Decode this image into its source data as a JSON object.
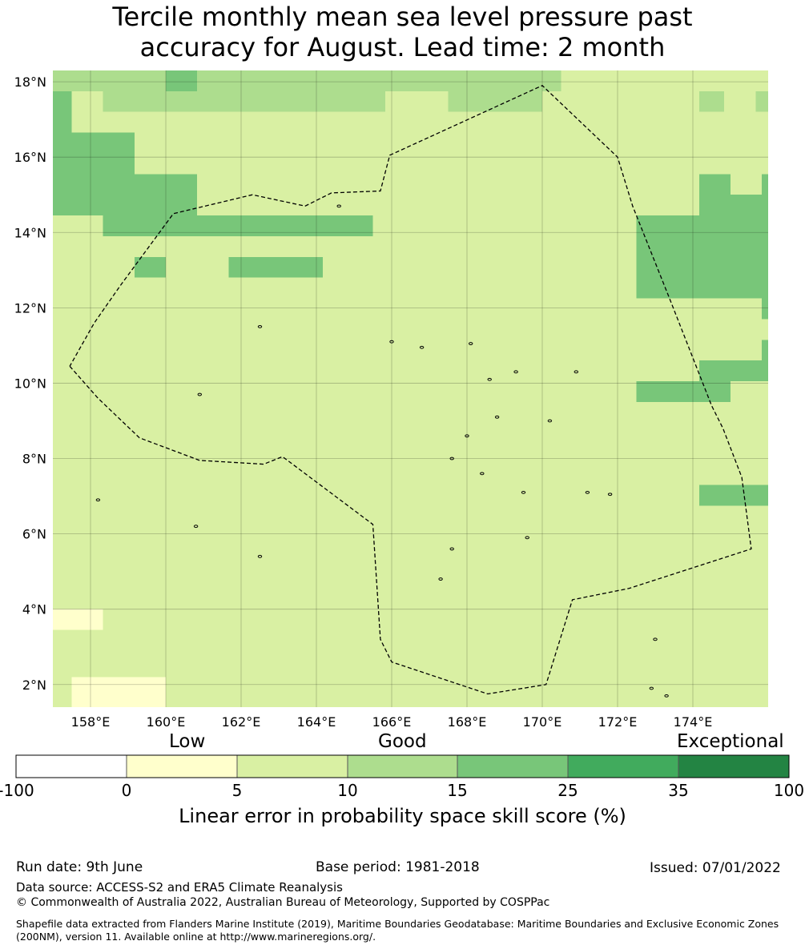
{
  "title_line1": "Tercile monthly mean sea level pressure past",
  "title_line2": "accuracy for August. Lead time: 2 month",
  "map": {
    "lon_range": [
      157,
      176
    ],
    "lat_range": [
      1.4,
      18.3
    ],
    "lon_ticks": [
      "158°E",
      "160°E",
      "162°E",
      "164°E",
      "166°E",
      "168°E",
      "170°E",
      "172°E",
      "174°E"
    ],
    "lat_ticks": [
      "18°N",
      "16°N",
      "14°N",
      "12°N",
      "10°N",
      "8°N",
      "6°N",
      "4°N",
      "2°N"
    ],
    "base_category": 2,
    "categories": [
      {
        "color": "#ffffff",
        "range": "-100 to 0"
      },
      {
        "color": "#ffffcc",
        "range": "0 to 5"
      },
      {
        "color": "#d9f0a3",
        "range": "5 to 10"
      },
      {
        "color": "#addd8e",
        "range": "10 to 15"
      },
      {
        "color": "#78c679",
        "range": "15 to 25"
      },
      {
        "color": "#41ab5d",
        "range": "25 to 35"
      },
      {
        "color": "#238443",
        "range": "35 to 100"
      }
    ],
    "category_cells": [
      {
        "category": 3,
        "lon": [
          157,
          170.5
        ],
        "lat": [
          17.75,
          18.3
        ]
      },
      {
        "category": 4,
        "lon": [
          160,
          160.83
        ],
        "lat": [
          17.75,
          18.3
        ]
      },
      {
        "category": 2,
        "lon": [
          170.5,
          176
        ],
        "lat": [
          17.75,
          18.3
        ]
      },
      {
        "category": 3,
        "lon": [
          157,
          176
        ],
        "lat": [
          17.2,
          17.75
        ]
      },
      {
        "category": 4,
        "lon": [
          157,
          157.5
        ],
        "lat": [
          17.2,
          17.75
        ]
      },
      {
        "category": 2,
        "lon": [
          157.5,
          158.33
        ],
        "lat": [
          17.2,
          17.75
        ]
      },
      {
        "category": 2,
        "lon": [
          165.83,
          167.5
        ],
        "lat": [
          17.2,
          17.75
        ]
      },
      {
        "category": 2,
        "lon": [
          170,
          174.17
        ],
        "lat": [
          17.2,
          17.75
        ]
      },
      {
        "category": 2,
        "lon": [
          174.83,
          175.67
        ],
        "lat": [
          17.2,
          17.75
        ]
      },
      {
        "category": 4,
        "lon": [
          157,
          157.5
        ],
        "lat": [
          16.65,
          17.2
        ]
      },
      {
        "category": 4,
        "lon": [
          157,
          159.17
        ],
        "lat": [
          16.1,
          16.65
        ]
      },
      {
        "category": 4,
        "lon": [
          157,
          159.17
        ],
        "lat": [
          15.55,
          16.1
        ]
      },
      {
        "category": 4,
        "lon": [
          157,
          160.83
        ],
        "lat": [
          15.0,
          15.55
        ]
      },
      {
        "category": 4,
        "lon": [
          174.17,
          175
        ],
        "lat": [
          15.0,
          15.55
        ]
      },
      {
        "category": 4,
        "lon": [
          175.83,
          176
        ],
        "lat": [
          15.0,
          15.55
        ]
      },
      {
        "category": 4,
        "lon": [
          157,
          160.83
        ],
        "lat": [
          14.45,
          15.0
        ]
      },
      {
        "category": 4,
        "lon": [
          174.17,
          176
        ],
        "lat": [
          14.45,
          15.0
        ]
      },
      {
        "category": 4,
        "lon": [
          158.33,
          165.5
        ],
        "lat": [
          13.9,
          14.45
        ]
      },
      {
        "category": 4,
        "lon": [
          172.5,
          176
        ],
        "lat": [
          13.9,
          14.45
        ]
      },
      {
        "category": 4,
        "lon": [
          172.5,
          176
        ],
        "lat": [
          13.35,
          13.9
        ]
      },
      {
        "category": 4,
        "lon": [
          159.17,
          160
        ],
        "lat": [
          12.8,
          13.35
        ]
      },
      {
        "category": 4,
        "lon": [
          161.67,
          164.17
        ],
        "lat": [
          12.8,
          13.35
        ]
      },
      {
        "category": 4,
        "lon": [
          172.5,
          176
        ],
        "lat": [
          12.8,
          13.35
        ]
      },
      {
        "category": 2,
        "lon": [
          159.17,
          160
        ],
        "lat": [
          12.25,
          12.8
        ]
      },
      {
        "category": 2,
        "lon": [
          164.17,
          165.83
        ],
        "lat": [
          12.25,
          12.8
        ]
      },
      {
        "category": 2,
        "lon": [
          170.83,
          172.5
        ],
        "lat": [
          12.25,
          12.8
        ]
      },
      {
        "category": 4,
        "lon": [
          172.5,
          176
        ],
        "lat": [
          12.25,
          12.8
        ]
      },
      {
        "category": 2,
        "lon": [
          162.5,
          164.17
        ],
        "lat": [
          11.7,
          12.25
        ]
      },
      {
        "category": 2,
        "lon": [
          165.83,
          169.17
        ],
        "lat": [
          11.7,
          12.25
        ]
      },
      {
        "category": 4,
        "lon": [
          175.83,
          176
        ],
        "lat": [
          11.7,
          12.25
        ]
      },
      {
        "category": 2,
        "lon": [
          160,
          164.17
        ],
        "lat": [
          11.15,
          11.7
        ]
      },
      {
        "category": 2,
        "lon": [
          157,
          165
        ],
        "lat": [
          10.6,
          11.15
        ]
      },
      {
        "category": 2,
        "lon": [
          165.83,
          166.67
        ],
        "lat": [
          10.6,
          11.15
        ]
      },
      {
        "category": 4,
        "lon": [
          175.83,
          176
        ],
        "lat": [
          10.6,
          11.15
        ]
      },
      {
        "category": 2,
        "lon": [
          157,
          166.67
        ],
        "lat": [
          10.05,
          10.6
        ]
      },
      {
        "category": 4,
        "lon": [
          174.17,
          176
        ],
        "lat": [
          10.05,
          10.6
        ]
      },
      {
        "category": 2,
        "lon": [
          157,
          162.5
        ],
        "lat": [
          9.5,
          10.05
        ]
      },
      {
        "category": 2,
        "lon": [
          163.33,
          164.17
        ],
        "lat": [
          9.5,
          10.05
        ]
      },
      {
        "category": 4,
        "lon": [
          172.5,
          175
        ],
        "lat": [
          9.5,
          10.05
        ]
      },
      {
        "category": 2,
        "lon": [
          157,
          159.17
        ],
        "lat": [
          8.95,
          9.5
        ]
      },
      {
        "category": 2,
        "lon": [
          160,
          160.83
        ],
        "lat": [
          8.95,
          9.5
        ]
      },
      {
        "category": 2,
        "lon": [
          157,
          159.17
        ],
        "lat": [
          8.4,
          8.95
        ]
      },
      {
        "category": 2,
        "lon": [
          166.67,
          168.33
        ],
        "lat": [
          8.4,
          8.95
        ]
      },
      {
        "category": 2,
        "lon": [
          157,
          160.83
        ],
        "lat": [
          7.85,
          8.4
        ]
      },
      {
        "category": 2,
        "lon": [
          164.17,
          165
        ],
        "lat": [
          7.85,
          8.4
        ]
      },
      {
        "category": 2,
        "lon": [
          165.83,
          169.17
        ],
        "lat": [
          7.85,
          8.4
        ]
      },
      {
        "category": 2,
        "lon": [
          157,
          159.17
        ],
        "lat": [
          7.3,
          7.85
        ]
      },
      {
        "category": 2,
        "lon": [
          160,
          163.33
        ],
        "lat": [
          7.3,
          7.85
        ]
      },
      {
        "category": 2,
        "lon": [
          166.67,
          168.33
        ],
        "lat": [
          7.3,
          7.85
        ]
      },
      {
        "category": 2,
        "lon": [
          157,
          161.67
        ],
        "lat": [
          6.75,
          7.3
        ]
      },
      {
        "category": 4,
        "lon": [
          174.17,
          176
        ],
        "lat": [
          6.75,
          7.3
        ]
      },
      {
        "category": 2,
        "lon": [
          157,
          162.5
        ],
        "lat": [
          6.2,
          6.75
        ]
      },
      {
        "category": 2,
        "lon": [
          157,
          161.67
        ],
        "lat": [
          5.65,
          6.2
        ]
      },
      {
        "category": 2,
        "lon": [
          172.5,
          173.33
        ],
        "lat": [
          5.65,
          6.2
        ]
      },
      {
        "category": 2,
        "lon": [
          157,
          163.33
        ],
        "lat": [
          5.1,
          5.65
        ]
      },
      {
        "category": 2,
        "lon": [
          172.5,
          175
        ],
        "lat": [
          5.1,
          5.65
        ]
      },
      {
        "category": 2,
        "lon": [
          157,
          165
        ],
        "lat": [
          4.55,
          5.1
        ]
      },
      {
        "category": 2,
        "lon": [
          157,
          165
        ],
        "lat": [
          4.0,
          4.55
        ]
      },
      {
        "category": 1,
        "lon": [
          157,
          158.33
        ],
        "lat": [
          3.45,
          4.0
        ]
      },
      {
        "category": 2,
        "lon": [
          158.33,
          165
        ],
        "lat": [
          3.45,
          4.0
        ]
      },
      {
        "category": 2,
        "lon": [
          165.83,
          166.67
        ],
        "lat": [
          3.45,
          4.0
        ]
      },
      {
        "category": 2,
        "lon": [
          167.5,
          168.33
        ],
        "lat": [
          3.45,
          4.0
        ]
      },
      {
        "category": 2,
        "lon": [
          157,
          165
        ],
        "lat": [
          2.9,
          3.45
        ]
      },
      {
        "category": 2,
        "lon": [
          167.5,
          168.33
        ],
        "lat": [
          2.9,
          3.45
        ]
      },
      {
        "category": 2,
        "lon": [
          157,
          165
        ],
        "lat": [
          2.35,
          2.9
        ]
      },
      {
        "category": 2,
        "lon": [
          169.17,
          170
        ],
        "lat": [
          2.35,
          2.9
        ]
      },
      {
        "category": 2,
        "lon": [
          171.67,
          172.5
        ],
        "lat": [
          2.35,
          2.9
        ]
      },
      {
        "category": 2,
        "lon": [
          157,
          165
        ],
        "lat": [
          1.8,
          2.35
        ]
      },
      {
        "category": 2,
        "lon": [
          170,
          170.83
        ],
        "lat": [
          1.8,
          2.35
        ]
      },
      {
        "category": 2,
        "lon": [
          171.67,
          172.5
        ],
        "lat": [
          1.8,
          2.35
        ]
      },
      {
        "category": 1,
        "lon": [
          157.5,
          160
        ],
        "lat": [
          1.4,
          2.2
        ]
      },
      {
        "category": 2,
        "lon": [
          160,
          164.17
        ],
        "lat": [
          1.4,
          1.8
        ]
      },
      {
        "category": 2,
        "lon": [
          170.83,
          172.5
        ],
        "lat": [
          1.4,
          1.8
        ]
      }
    ],
    "eez_boundary": [
      [
        157.45,
        10.45
      ],
      [
        158.2,
        9.6
      ],
      [
        159.3,
        8.55
      ],
      [
        160.9,
        7.95
      ],
      [
        162.6,
        7.85
      ],
      [
        163.1,
        8.05
      ],
      [
        165.5,
        6.25
      ],
      [
        165.7,
        3.2
      ],
      [
        166.0,
        2.6
      ],
      [
        168.55,
        1.75
      ],
      [
        170.1,
        2.0
      ],
      [
        170.8,
        4.25
      ],
      [
        172.3,
        4.55
      ],
      [
        175.55,
        5.6
      ],
      [
        175.3,
        7.5
      ],
      [
        174.8,
        8.8
      ],
      [
        174.5,
        9.4
      ],
      [
        173.4,
        12.2
      ],
      [
        172.4,
        14.7
      ],
      [
        172.0,
        16.0
      ],
      [
        170.0,
        17.9
      ],
      [
        165.95,
        16.05
      ],
      [
        165.7,
        15.1
      ],
      [
        164.4,
        15.05
      ],
      [
        163.7,
        14.7
      ],
      [
        162.3,
        15.0
      ],
      [
        160.2,
        14.5
      ],
      [
        158.8,
        12.6
      ],
      [
        158.1,
        11.6
      ],
      [
        157.45,
        10.45
      ]
    ]
  },
  "colorbar": {
    "quality_labels": [
      "Low",
      "Good",
      "Exceptional"
    ],
    "tick_labels": [
      "-100",
      "0",
      "5",
      "10",
      "15",
      "25",
      "35",
      "100"
    ],
    "colors": [
      "#ffffff",
      "#ffffcc",
      "#d9f0a3",
      "#addd8e",
      "#78c679",
      "#41ab5d",
      "#238443"
    ],
    "title": "Linear error in probability space skill score (%)"
  },
  "footer": {
    "run_date": "Run date: 9th June",
    "base_period": "Base period: 1981-2018",
    "issued": "Issued: 07/01/2022",
    "data_source": "Data source: ACCESS-S2 and ERA5 Climate Reanalysis",
    "copyright": "© Commonwealth of Australia 2022, Australian Bureau of Meteorology, Supported by COSPPac",
    "shapefile": "Shapefile data extracted from Flanders Marine Institute (2019), Maritime Boundaries Geodatabase: Maritime Boundaries and Exclusive Economic Zones (200NM), version 11. Available online at http://www.marineregions.org/."
  }
}
